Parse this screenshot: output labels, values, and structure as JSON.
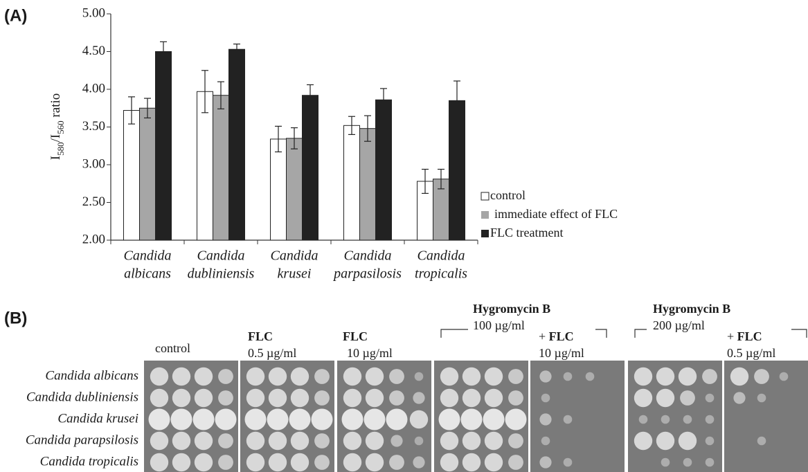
{
  "chart_data": {
    "type": "bar",
    "panel_label": "(A)",
    "ylabel": [
      "I",
      "580",
      "/I",
      "560",
      " ratio"
    ],
    "categories": [
      [
        "Candida",
        "albicans"
      ],
      [
        "Candida",
        "dubliniensis"
      ],
      [
        "Candida",
        "krusei"
      ],
      [
        "Candida",
        "parpasilosis"
      ],
      [
        "Candida",
        "tropicalis"
      ]
    ],
    "series": [
      {
        "name": "control",
        "color": "#ffffff",
        "values": [
          3.72,
          3.97,
          3.34,
          3.52,
          2.78
        ],
        "errors": [
          0.18,
          0.28,
          0.17,
          0.12,
          0.16
        ]
      },
      {
        "name": "immediate effect of FLC",
        "color": "#a6a6a6",
        "values": [
          3.75,
          3.92,
          3.35,
          3.48,
          2.81
        ],
        "errors": [
          0.13,
          0.18,
          0.14,
          0.17,
          0.13
        ]
      },
      {
        "name": "FLC treatment",
        "color": "#222222",
        "values": [
          4.5,
          4.53,
          3.92,
          3.86,
          3.85
        ],
        "errors": [
          0.13,
          0.07,
          0.14,
          0.15,
          0.26
        ]
      }
    ],
    "ylim": [
      2,
      5
    ],
    "yticks": [
      {
        "value": 2,
        "label": "2.00"
      },
      {
        "value": 2.5,
        "label": "2.50"
      },
      {
        "value": 3,
        "label": "3.00"
      },
      {
        "value": 3.5,
        "label": "3.50"
      },
      {
        "value": 4,
        "label": "4.00"
      },
      {
        "value": 4.5,
        "label": "4.50"
      },
      {
        "value": 5,
        "label": "5.00"
      }
    ],
    "grid": false,
    "legend": "right"
  },
  "panel_b": {
    "label": "(B)",
    "strains": [
      "Candida albicans",
      "Candida dubliniensis",
      "Candida krusei",
      "Candida parapsilosis",
      "Candida tropicalis"
    ],
    "headers": {
      "control": "control",
      "flc_low": {
        "drug": "FLC",
        "dose": "0.5 µg/ml"
      },
      "flc_high": {
        "drug": "FLC",
        "dose": "10 µg/ml"
      },
      "hyg100": {
        "drug": "Hygromycin B",
        "dose": "100 µg/ml"
      },
      "hyg100_flc": {
        "prefix": "+ ",
        "drug": "FLC",
        "dose": "10 µg/ml"
      },
      "hyg200": {
        "drug": "Hygromycin B",
        "dose": "200 µg/ml"
      },
      "hyg200_flc": {
        "prefix": "+ ",
        "drug": "FLC",
        "dose": "0.5 µg/ml"
      }
    }
  }
}
